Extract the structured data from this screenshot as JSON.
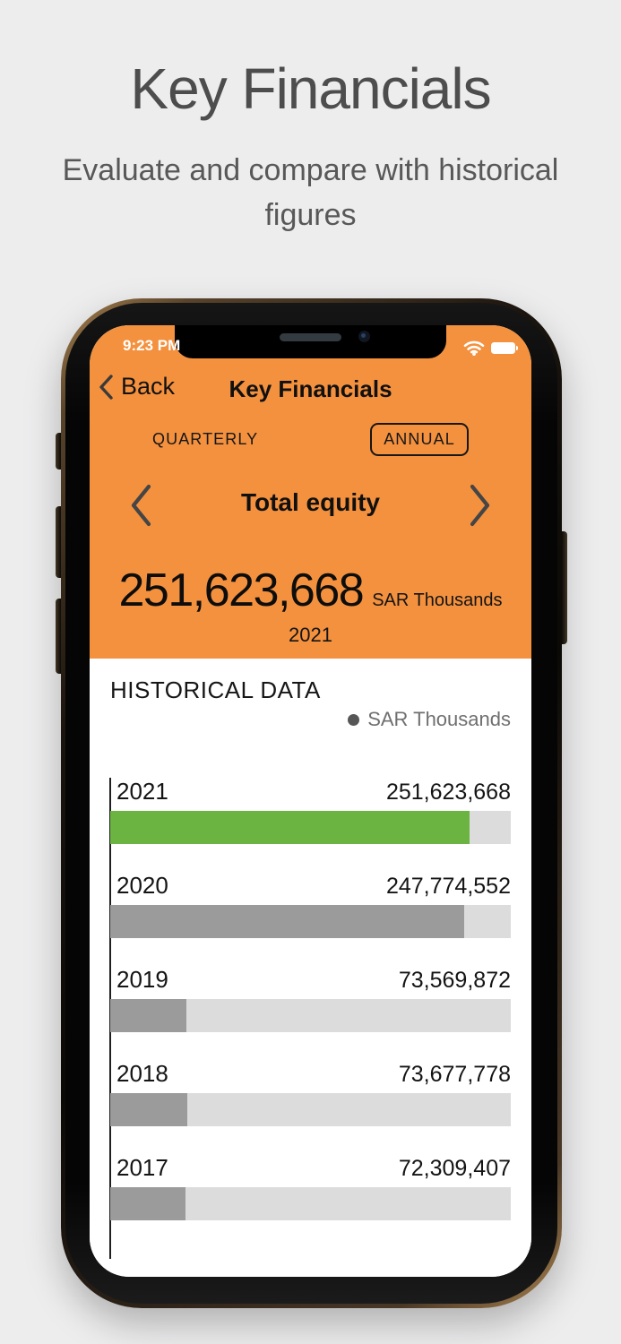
{
  "page": {
    "title": "Key Financials",
    "subtitle": "Evaluate and compare with historical figures"
  },
  "phone": {
    "status_bar": {
      "time": "9:23 PM",
      "icons": [
        "wifi-icon",
        "battery-icon"
      ]
    },
    "nav": {
      "back_label": "Back",
      "title": "Key Financials",
      "back_icon": "chevron-left-icon"
    },
    "tabs": {
      "quarterly": "QUARTERLY",
      "annual": "ANNUAL",
      "selected": "ANNUAL"
    },
    "metric": {
      "prev_icon": "chevron-left-icon",
      "next_icon": "chevron-right-icon",
      "name": "Total equity",
      "value": "251,623,668",
      "unit": "SAR Thousands",
      "year": "2021"
    },
    "historical": {
      "heading": "HISTORICAL DATA",
      "legend": "SAR Thousands"
    }
  },
  "chart_data": {
    "type": "bar",
    "orientation": "horizontal",
    "title": "HISTORICAL DATA",
    "unit": "SAR Thousands",
    "categories": [
      "2021",
      "2020",
      "2019",
      "2018",
      "2017"
    ],
    "values": [
      251623668,
      247774552,
      73569872,
      73677778,
      72309407
    ],
    "value_labels": [
      "251,623,668",
      "247,774,552",
      "73,569,872",
      "73,677,778",
      "72,309,407"
    ],
    "fill_percent": [
      89.7,
      88.3,
      19.0,
      19.3,
      18.8
    ],
    "bar_colors": [
      "#6CB442",
      "#9B9B9B",
      "#9B9B9B",
      "#9B9B9B",
      "#9B9B9B"
    ],
    "track_color": "#DCDCDC",
    "highlight_color": "#6CB442",
    "legend_position": "top-right",
    "grid": false
  },
  "colors": {
    "accent_orange": "#F4913E",
    "highlight_green": "#6CB442",
    "bar_gray": "#9B9B9B",
    "track_gray": "#DCDCDC",
    "page_bg": "#EDEDEE"
  }
}
